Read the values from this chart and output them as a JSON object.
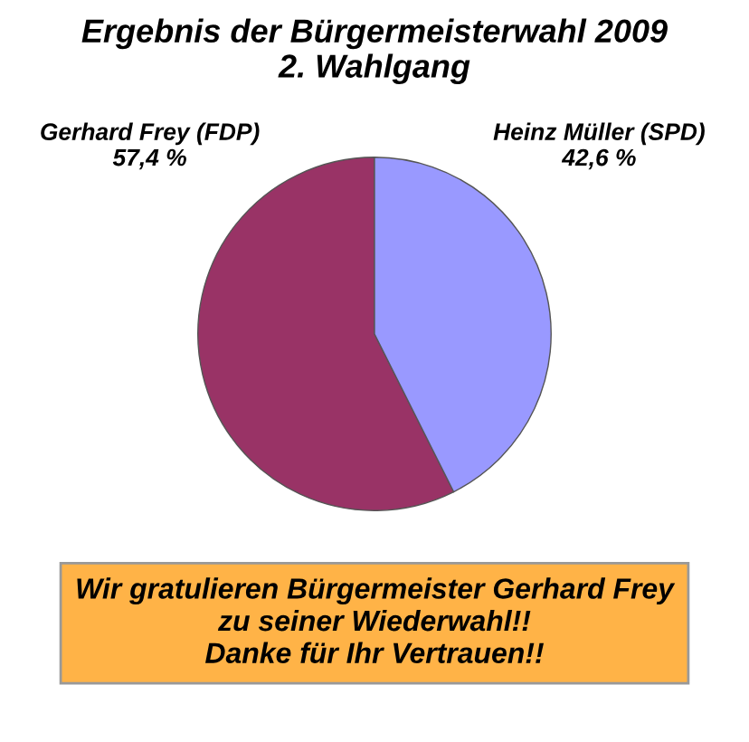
{
  "chart_data": {
    "type": "pie",
    "title": "Ergebnis der Bürgermeisterwahl 2009\n2. Wahlgang",
    "categories": [
      "Gerhard Frey (FDP)",
      "Heinz Müller (SPD)"
    ],
    "values": [
      57.4,
      42.6
    ],
    "value_labels": [
      "57,4 %",
      "42,6 %"
    ],
    "colors": [
      "#993366",
      "#9999ff"
    ],
    "annotations": [
      "Wir gratulieren Bürgermeister Gerhard Frey\nzu seiner Wiederwahl!!\nDanke für Ihr Vertrauen!!"
    ]
  }
}
